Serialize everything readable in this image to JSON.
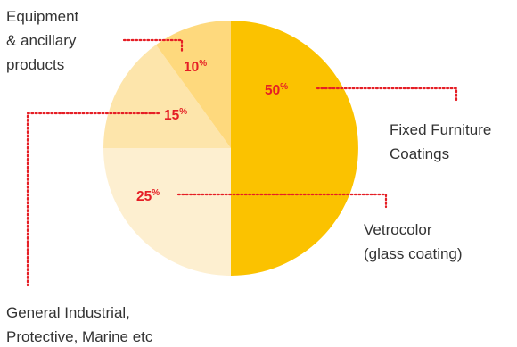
{
  "chart_data": {
    "type": "pie",
    "title": "",
    "slices": [
      {
        "label_lines": [
          "Fixed Furniture",
          "Coatings"
        ],
        "value": 50,
        "value_label": "50",
        "unit": "%",
        "color": "#fbc200"
      },
      {
        "label_lines": [
          "Vetrocolor",
          "(glass coating)"
        ],
        "value": 25,
        "value_label": "25",
        "unit": "%",
        "color": "#fdefd0"
      },
      {
        "label_lines": [
          "General Industrial,",
          "Protective, Marine etc"
        ],
        "value": 15,
        "value_label": "15",
        "unit": "%",
        "color": "#fde5ab"
      },
      {
        "label_lines": [
          "Equipment",
          "& ancillary",
          "products"
        ],
        "value": 10,
        "value_label": "10",
        "unit": "%",
        "color": "#fed97d"
      }
    ],
    "start_angle_deg": 0,
    "direction": "clockwise",
    "label_color": "#333333",
    "percent_color": "#e51e25"
  }
}
